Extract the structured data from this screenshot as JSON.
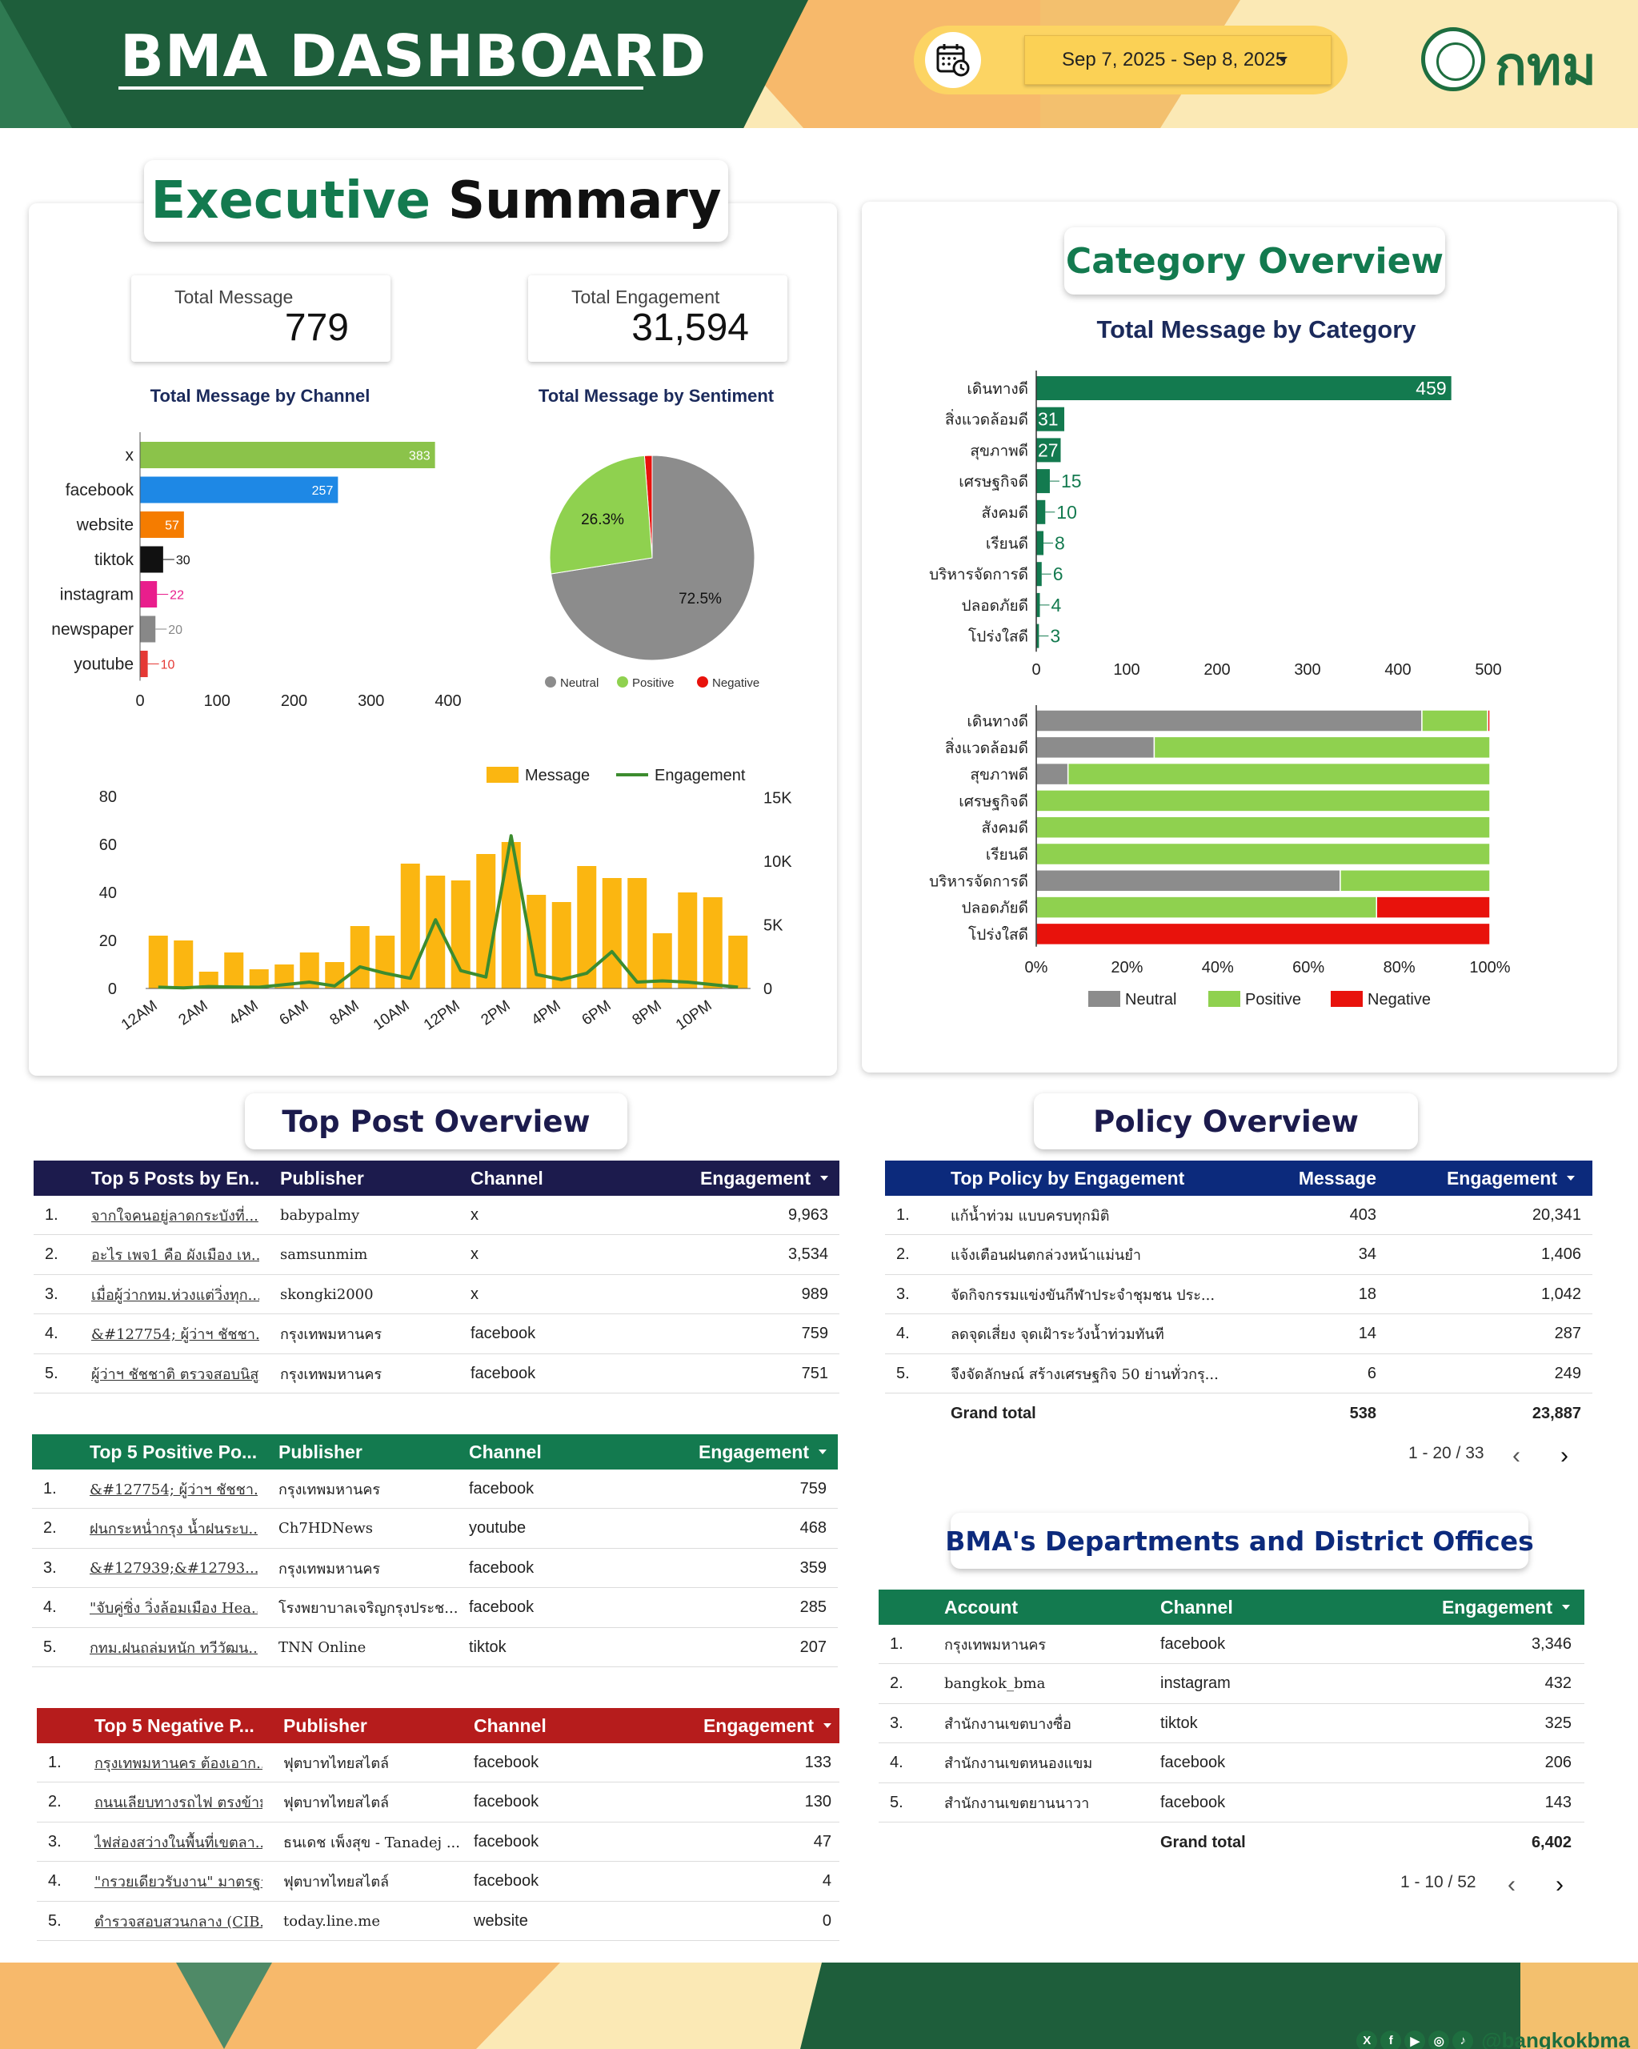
{
  "header": {
    "title": "BMA DASHBOARD",
    "date_range": "Sep 7, 2025 - Sep 8, 2025",
    "logo_text": "กทม"
  },
  "executive_summary": {
    "title_part1": "Executive",
    "title_part2": "Summary",
    "kpis": {
      "total_message_label": "Total Message",
      "total_message_value": "779",
      "total_engagement_label": "Total Engagement",
      "total_engagement_value": "31,594"
    }
  },
  "charts": {
    "channel": {
      "title": "Total Message by Channel",
      "type": "bar",
      "categories": [
        "x",
        "facebook",
        "website",
        "tiktok",
        "instagram",
        "newspaper",
        "youtube"
      ],
      "values": [
        383,
        257,
        57,
        30,
        22,
        20,
        10
      ],
      "colors": [
        "#8bc34a",
        "#1e88e5",
        "#f57c00",
        "#111111",
        "#e91e8c",
        "#888888",
        "#e53935"
      ],
      "xlim": [
        0,
        400
      ],
      "ticks": [
        "0",
        "100",
        "200",
        "300",
        "400"
      ]
    },
    "sentiment": {
      "title": "Total Message by Sentiment",
      "type": "pie",
      "labels": [
        "Neutral",
        "Positive",
        "Negative"
      ],
      "values": [
        72.5,
        26.3,
        1.2
      ],
      "colors": [
        "#8c8c8c",
        "#8fd14f",
        "#e8120c"
      ],
      "label_neutral": "72.5%",
      "label_positive": "26.3%"
    },
    "hourly": {
      "type": "bar+line",
      "legend_message": "Message",
      "legend_engagement": "Engagement",
      "hours": [
        "12AM",
        "1AM",
        "2AM",
        "3AM",
        "4AM",
        "5AM",
        "6AM",
        "7AM",
        "8AM",
        "9AM",
        "10AM",
        "11AM",
        "12PM",
        "1PM",
        "2PM",
        "3PM",
        "4PM",
        "5PM",
        "6PM",
        "7PM",
        "8PM",
        "9PM",
        "10PM",
        "11PM"
      ],
      "tick_labels": [
        "12AM",
        "2AM",
        "4AM",
        "6AM",
        "8AM",
        "10AM",
        "12PM",
        "2PM",
        "4PM",
        "6PM",
        "8PM",
        "10PM"
      ],
      "message": [
        22,
        20,
        7,
        15,
        8,
        10,
        15,
        11,
        26,
        22,
        52,
        47,
        45,
        56,
        61,
        39,
        36,
        51,
        46,
        46,
        23,
        40,
        38,
        22
      ],
      "engagement": [
        100,
        50,
        150,
        120,
        100,
        300,
        500,
        200,
        1700,
        1200,
        800,
        5400,
        1400,
        900,
        12000,
        1100,
        700,
        1200,
        2900,
        500,
        600,
        500,
        300,
        100
      ],
      "y_left": [
        "0",
        "20",
        "40",
        "60",
        "80"
      ],
      "y_right": [
        "0",
        "5K",
        "10K",
        "15K"
      ],
      "ylim_left": [
        0,
        80
      ],
      "ylim_right": [
        0,
        15000
      ],
      "colors": {
        "message": "#fbb611",
        "engagement": "#3c8c2f"
      }
    },
    "category": {
      "section_title": "Category Overview",
      "title": "Total Message by Category",
      "type": "bar",
      "categories": [
        "เดินทางดี",
        "สิ่งแวดล้อมดี",
        "สุขภาพดี",
        "เศรษฐกิจดี",
        "สังคมดี",
        "เรียนดี",
        "บริหารจัดการดี",
        "ปลอดภัยดี",
        "โปร่งใสดี"
      ],
      "values": [
        459,
        31,
        27,
        15,
        10,
        8,
        6,
        4,
        3
      ],
      "xlim": [
        0,
        500
      ],
      "ticks": [
        "0",
        "100",
        "200",
        "300",
        "400",
        "500"
      ],
      "color": "#137a4f"
    },
    "category_sentiment": {
      "type": "stacked-bar",
      "categories": [
        "เดินทางดี",
        "สิ่งแวดล้อมดี",
        "สุขภาพดี",
        "เศรษฐกิจดี",
        "สังคมดี",
        "เรียนดี",
        "บริหารจัดการดี",
        "ปลอดภัยดี",
        "โปร่งใสดี"
      ],
      "series": [
        {
          "name": "Neutral",
          "values": [
            85,
            26,
            7,
            0,
            0,
            0,
            67,
            0,
            0
          ],
          "color": "#8c8c8c"
        },
        {
          "name": "Positive",
          "values": [
            14.5,
            74,
            93,
            100,
            100,
            100,
            33,
            75,
            0
          ],
          "color": "#8fd14f"
        },
        {
          "name": "Negative",
          "values": [
            0.5,
            0,
            0,
            0,
            0,
            0,
            0,
            25,
            100
          ],
          "color": "#e8120c"
        }
      ],
      "ticks": [
        "0%",
        "20%",
        "40%",
        "60%",
        "80%",
        "100%"
      ]
    }
  },
  "top_posts": {
    "section_title": "Top Post Overview",
    "engagement": {
      "header_color": "#1c1b4d",
      "columns": [
        "Top 5 Posts by En...",
        "Publisher",
        "Channel",
        "Engagement"
      ],
      "rows": [
        [
          "1.",
          "จากใจคนอยู่ลาดกระบังที่...",
          "babypalmy",
          "x",
          "9,963"
        ],
        [
          "2.",
          "อะไร เพจ1 คือ ผังเมือง เห...",
          "samsunmim",
          "x",
          "3,534"
        ],
        [
          "3.",
          "เมื่อผู้ว่ากทม.ห่วงแต่วิ่งทุก...",
          "skongki2000",
          "x",
          "989"
        ],
        [
          "4.",
          "&#127754; ผู้ว่าฯ ชัชชา...",
          "กรุงเทพมหานคร",
          "facebook",
          "759"
        ],
        [
          "5.",
          "ผู้ว่าฯ ชัชชาติ ตรวจสอบนิสู...",
          "กรุงเทพมหานคร",
          "facebook",
          "751"
        ]
      ]
    },
    "positive": {
      "header_color": "#137a4f",
      "columns": [
        "Top 5 Positive Po...",
        "Publisher",
        "Channel",
        "Engagement"
      ],
      "rows": [
        [
          "1.",
          "&#127754; ผู้ว่าฯ ชัชชา...",
          "กรุงเทพมหานคร",
          "facebook",
          "759"
        ],
        [
          "2.",
          "ฝนกระหน่ำกรุง น้ำฝนระบ...",
          "Ch7HDNews",
          "youtube",
          "468"
        ],
        [
          "3.",
          "&#127939;&#12793...",
          "กรุงเทพมหานคร",
          "facebook",
          "359"
        ],
        [
          "4.",
          "\"จับคู่ซิ่ง วิ่งล้อมเมือง Hea...",
          "โรงพยาบาลเจริญกรุงประช...",
          "facebook",
          "285"
        ],
        [
          "5.",
          "กทม.ฝนถล่มหนัก ทวีวัฒน...",
          "TNN Online",
          "tiktok",
          "207"
        ]
      ]
    },
    "negative": {
      "header_color": "#b61c1c",
      "columns": [
        "Top 5 Negative P...",
        "Publisher",
        "Channel",
        "Engagement"
      ],
      "rows": [
        [
          "1.",
          "กรุงเทพมหานคร ต้องเอาก...",
          "ฟุตบาทไทยสไตล์",
          "facebook",
          "133"
        ],
        [
          "2.",
          "ถนนเลียบทางรถไฟ ตรงข้ามโรงบา...",
          "ฟุตบาทไทยสไตล์",
          "facebook",
          "130"
        ],
        [
          "3.",
          "ไฟส่องสว่างในพื้นที่เขตลา...",
          "ธนเดช เพ็งสุข - Tanadej ...",
          "facebook",
          "47"
        ],
        [
          "4.",
          "\"กรวยเดียวรับงาน\" มาตรฐา...",
          "ฟุตบาทไทยสไตล์",
          "facebook",
          "4"
        ],
        [
          "5.",
          "ตำรวจสอบสวนกลาง (CIB...",
          "today.line.me",
          "website",
          "0"
        ]
      ]
    }
  },
  "policy": {
    "section_title": "Policy Overview",
    "header_color": "#0c2a7c",
    "columns": [
      "Top Policy by Engagement",
      "Message",
      "Engagement"
    ],
    "rows": [
      [
        "1.",
        "แก้น้ำท่วม แบบครบทุกมิติ",
        "403",
        "20,341"
      ],
      [
        "2.",
        "แจ้งเตือนฝนตกล่วงหน้าแม่นยำ",
        "34",
        "1,406"
      ],
      [
        "3.",
        "จัดกิจกรรมแข่งขันกีฬาประจำชุมชน ประ...",
        "18",
        "1,042"
      ],
      [
        "4.",
        "ลดจุดเสี่ยง จุดเฝ้าระวังน้ำท่วมทันที",
        "14",
        "287"
      ],
      [
        "5.",
        "จึงจัดลักษณ์ สร้างเศรษฐกิจ 50 ย่านทั่วกรุ...",
        "6",
        "249"
      ]
    ],
    "grand_total_label": "Grand total",
    "grand_total_message": "538",
    "grand_total_engagement": "23,887",
    "pager": "1 - 20 / 33"
  },
  "departments": {
    "section_title": "BMA's Departments and District Offices",
    "header_color": "#137a4f",
    "columns": [
      "Account",
      "Channel",
      "Engagement"
    ],
    "rows": [
      [
        "1.",
        "กรุงเทพมหานคร",
        "facebook",
        "3,346"
      ],
      [
        "2.",
        "bangkok_bma",
        "instagram",
        "432"
      ],
      [
        "3.",
        "สำนักงานเขตบางซื่อ",
        "tiktok",
        "325"
      ],
      [
        "4.",
        "สำนักงานเขตหนองแขม",
        "facebook",
        "206"
      ],
      [
        "5.",
        "สำนักงานเขตยานนาวา",
        "facebook",
        "143"
      ]
    ],
    "grand_total_label": "Grand total",
    "grand_total_engagement": "6,402",
    "pager": "1 - 10 / 52"
  },
  "footer": {
    "handle": "@bangkokbma",
    "icons": [
      "x-icon",
      "facebook-icon",
      "youtube-icon",
      "instagram-icon",
      "tiktok-icon"
    ]
  }
}
